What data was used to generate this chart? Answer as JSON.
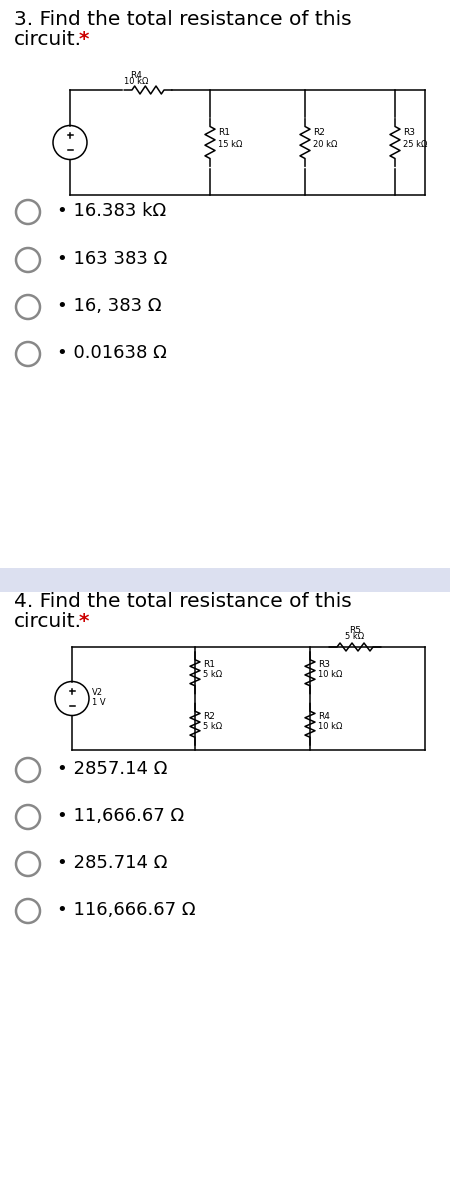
{
  "q3_title_line1": "3. Find the total resistance of this",
  "q3_title_line2": "circuit.",
  "q3_star": "*",
  "q3_star_color": "#cc0000",
  "q3_options": [
    "• 16.383 kΩ",
    "• 163 383 Ω",
    "• 16, 383 Ω",
    "• 0.01638 Ω"
  ],
  "q4_title_line1": "4. Find the total resistance of this",
  "q4_title_line2": "circuit.",
  "q4_star": "*",
  "q4_star_color": "#cc0000",
  "q4_options": [
    "• 2857.14 Ω",
    "• 11,666.67 Ω",
    "• 285.714 Ω",
    "• 116,666.67 Ω"
  ],
  "bg_color": "#ffffff",
  "text_color": "#000000",
  "line_color": "#000000",
  "divider_color": "#dce0f0",
  "font_size_title": 14.5,
  "font_size_options": 13,
  "font_size_circuit_label": 6.5,
  "font_size_circuit_value": 6.0,
  "q3_circ": {
    "r4_label": "R4",
    "r4_val": "10 kΩ",
    "r1_label": "R1",
    "r1_val": "15 kΩ",
    "r2_label": "R2",
    "r2_val": "20 kΩ",
    "r3_label": "R3",
    "r3_val": "25 kΩ"
  },
  "q4_circ": {
    "r5_label": "R5",
    "r5_val": "5 kΩ",
    "r1_label": "R1",
    "r1_val": "5 kΩ",
    "r2_label": "R2",
    "r2_val": "5 kΩ",
    "r3_label": "R3",
    "r3_val": "10 kΩ",
    "r4_label": "R4",
    "r4_val": "10 kΩ",
    "vs_name": "V2",
    "vs_val": "1 V"
  }
}
